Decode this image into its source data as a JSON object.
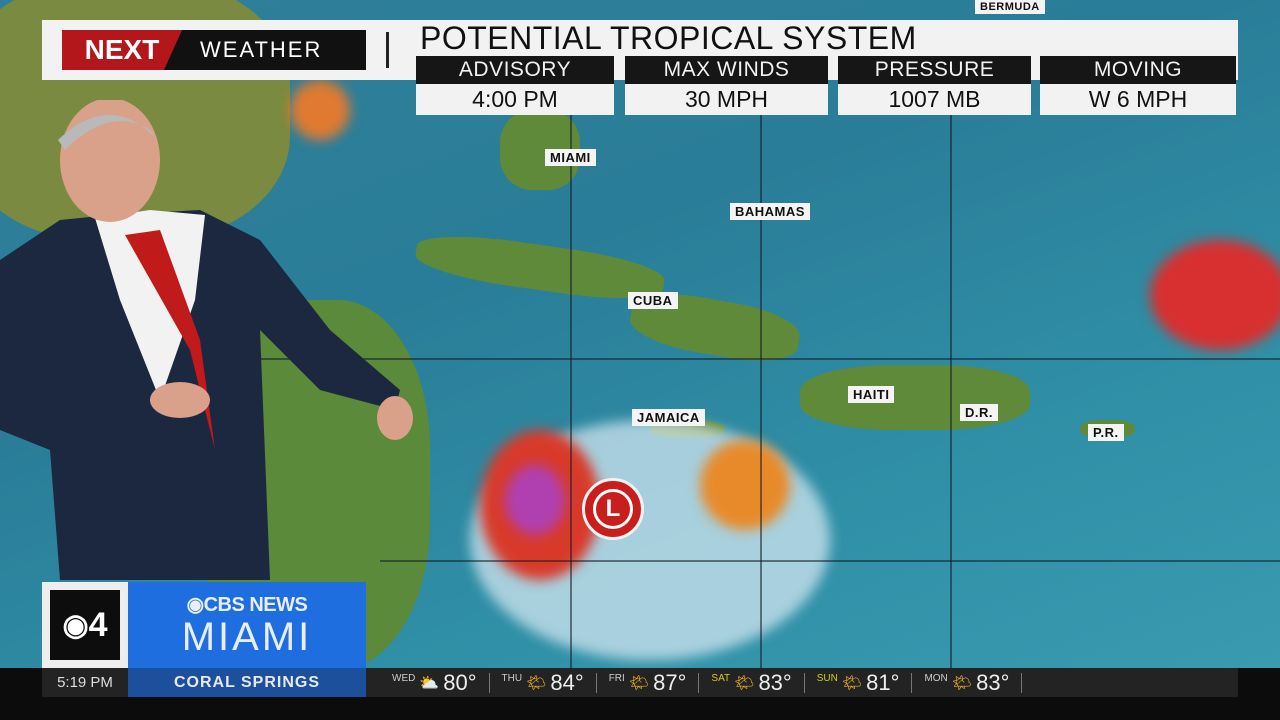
{
  "header": {
    "brand_next": "NEXT",
    "brand_weather": "WEATHER",
    "title": "POTENTIAL TROPICAL SYSTEM",
    "stats": [
      {
        "label": "ADVISORY",
        "value": "4:00 PM"
      },
      {
        "label": "MAX WINDS",
        "value": "30 MPH"
      },
      {
        "label": "PRESSURE",
        "value": "1007 MB"
      },
      {
        "label": "MOVING",
        "value": "W 6 MPH"
      }
    ]
  },
  "map": {
    "labels": [
      "MIAMI",
      "BAHAMAS",
      "CUBA",
      "JAMAICA",
      "HAITI",
      "D.R.",
      "P.R.",
      "BERMUDA"
    ],
    "low_symbol": "L"
  },
  "station": {
    "logo": "4",
    "network": "CBS NEWS",
    "city": "MIAMI",
    "time": "5:19 PM",
    "location": "CORAL SPRINGS"
  },
  "forecast": [
    {
      "day": "WED",
      "icon": "partly-cloudy-icon",
      "temp": "80°"
    },
    {
      "day": "THU",
      "icon": "partly-sunny-icon",
      "temp": "84°"
    },
    {
      "day": "FRI",
      "icon": "partly-sunny-icon",
      "temp": "87°"
    },
    {
      "day": "SAT",
      "icon": "partly-sunny-icon",
      "temp": "83°"
    },
    {
      "day": "SUN",
      "icon": "partly-sunny-icon",
      "temp": "81°"
    },
    {
      "day": "MON",
      "icon": "partly-sunny-icon",
      "temp": "83°"
    }
  ],
  "colors": {
    "brand_red": "#b3161b",
    "cbs_blue": "#1f6ee0",
    "low_red": "#c81e1e"
  }
}
